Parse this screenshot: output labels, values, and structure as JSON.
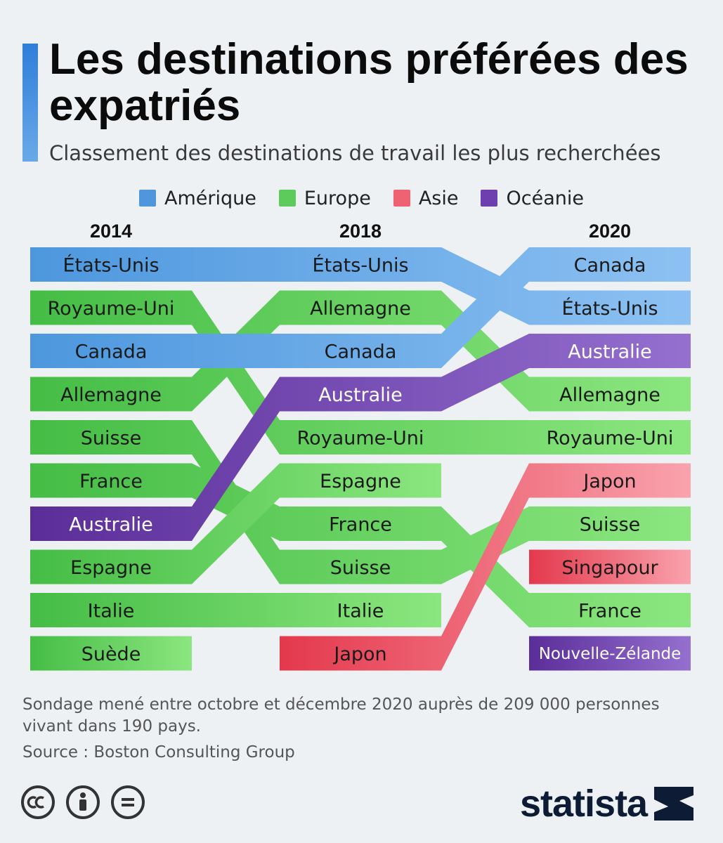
{
  "header": {
    "title": "Les destinations préférées des expatriés",
    "subtitle": "Classement des destinations de travail les plus recherchées"
  },
  "legend": [
    {
      "label": "Amérique",
      "color": "#4f96dc"
    },
    {
      "label": "Europe",
      "color": "#5ccb5c"
    },
    {
      "label": "Asie",
      "color": "#ef6272"
    },
    {
      "label": "Océanie",
      "color": "#6e3fae"
    }
  ],
  "chart_data": {
    "type": "table",
    "columns": [
      "2014",
      "2018",
      "2020"
    ],
    "rankings": {
      "2014": [
        "États-Unis",
        "Royaume-Uni",
        "Canada",
        "Allemagne",
        "Suisse",
        "France",
        "Australie",
        "Espagne",
        "Italie",
        "Suède"
      ],
      "2018": [
        "États-Unis",
        "Allemagne",
        "Canada",
        "Australie",
        "Royaume-Uni",
        "Espagne",
        "France",
        "Suisse",
        "Italie",
        "Japon"
      ],
      "2020": [
        "Canada",
        "États-Unis",
        "Australie",
        "Allemagne",
        "Royaume-Uni",
        "Japon",
        "Suisse",
        "Singapour",
        "France",
        "Nouvelle-Zélande"
      ]
    },
    "regions": {
      "États-Unis": "Amérique",
      "Canada": "Amérique",
      "Royaume-Uni": "Europe",
      "Allemagne": "Europe",
      "Suisse": "Europe",
      "France": "Europe",
      "Espagne": "Europe",
      "Italie": "Europe",
      "Suède": "Europe",
      "Australie": "Océanie",
      "Nouvelle-Zélande": "Océanie",
      "Japon": "Asie",
      "Singapour": "Asie"
    },
    "colors": {
      "Amérique": [
        "#4d97de",
        "#8dc1f2"
      ],
      "Europe": [
        "#45bd45",
        "#8be67f"
      ],
      "Asie": [
        "#e4384c",
        "#f9a3ad"
      ],
      "Océanie": [
        "#5b2d99",
        "#9570cf"
      ]
    }
  },
  "footer": {
    "note": "Sondage mené entre octobre et décembre 2020 auprès de 209 000 personnes vivant dans 190 pays.",
    "source": "Source : Boston Consulting Group",
    "brand": "statista"
  }
}
